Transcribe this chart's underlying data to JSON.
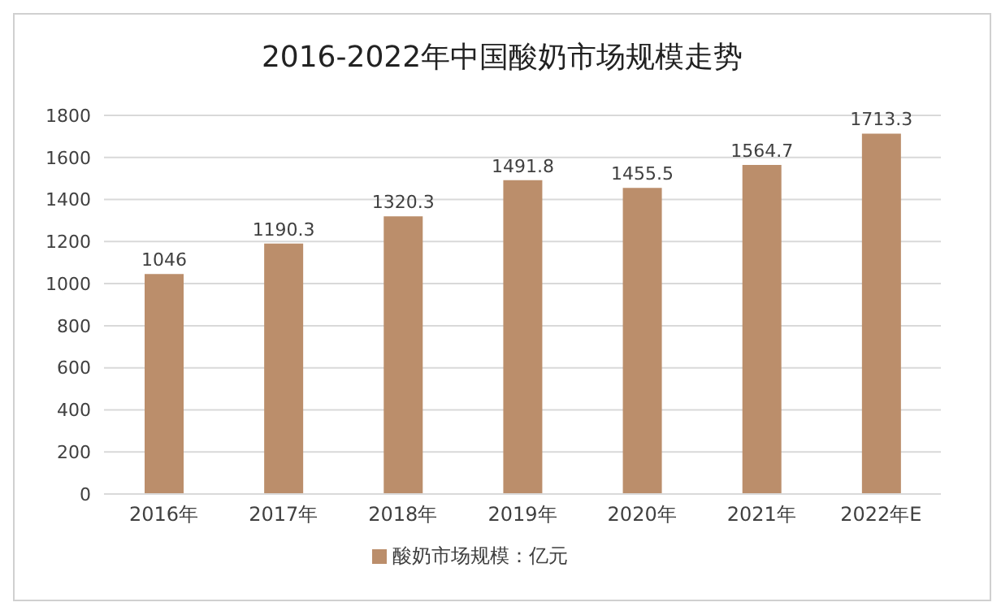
{
  "chart_data": {
    "type": "bar",
    "title": "2016-2022年中国酸奶市场规模走势",
    "categories": [
      "2016年",
      "2017年",
      "2018年",
      "2019年",
      "2020年",
      "2021年",
      "2022年E"
    ],
    "series": [
      {
        "name": "酸奶市场规模：亿元",
        "color": "#bb8e6b",
        "values": [
          1046,
          1190.3,
          1320.3,
          1491.8,
          1455.5,
          1564.7,
          1713.3
        ]
      }
    ],
    "ylim": [
      0,
      1800
    ],
    "yticks": [
      0,
      200,
      400,
      600,
      800,
      1000,
      1200,
      1400,
      1600,
      1800
    ],
    "grid": "y",
    "legend": "bottom",
    "data_labels": true
  }
}
